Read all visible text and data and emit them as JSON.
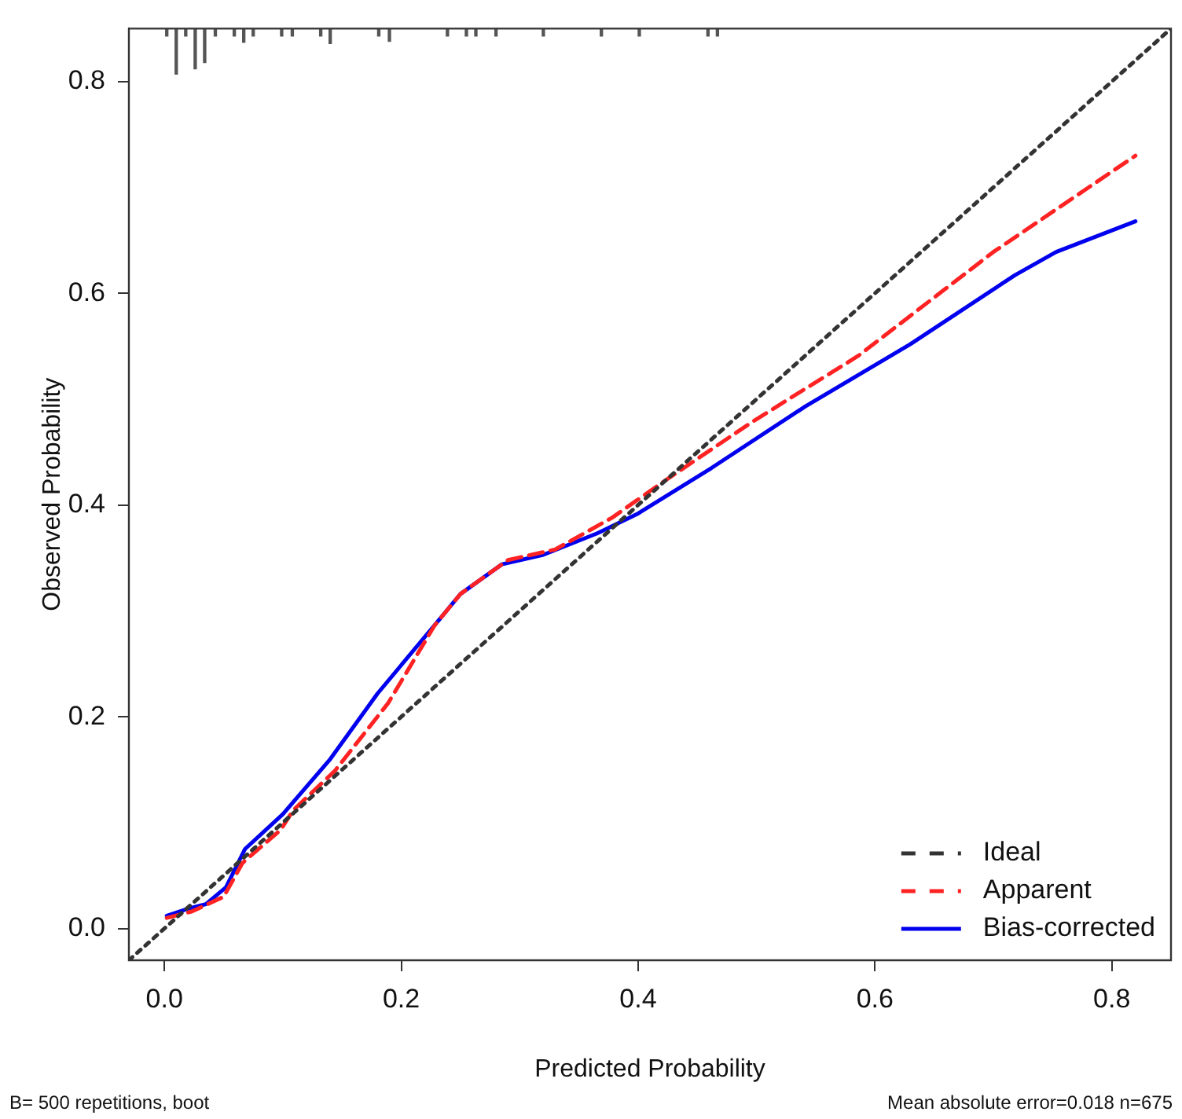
{
  "chart_data": {
    "type": "line",
    "xlabel": "Predicted Probability",
    "ylabel": "Observed Probability",
    "xlim": [
      -0.03,
      0.85
    ],
    "ylim": [
      -0.03,
      0.85
    ],
    "xticks": [
      {
        "value": 0,
        "label": "0.0"
      },
      {
        "value": 0.2,
        "label": "0.2"
      },
      {
        "value": 0.4,
        "label": "0.4"
      },
      {
        "value": 0.6,
        "label": "0.6"
      },
      {
        "value": 0.8,
        "label": "0.8"
      }
    ],
    "yticks": [
      {
        "value": 0,
        "label": "0.0"
      },
      {
        "value": 0.2,
        "label": "0.2"
      },
      {
        "value": 0.4,
        "label": "0.4"
      },
      {
        "value": 0.6,
        "label": "0.6"
      },
      {
        "value": 0.8,
        "label": "0.8"
      }
    ],
    "grid": false,
    "legend": "bottom right",
    "marker": "none",
    "annotations": [
      "B= 500 repetitions, boot",
      "Mean absolute error=0.018 n=675"
    ],
    "series": [
      {
        "type": "bar",
        "color": "#555555",
        "x": [
          0.002,
          0.01,
          0.018,
          0.026,
          0.034,
          0.043,
          0.059,
          0.067,
          0.075,
          0.099,
          0.108,
          0.132,
          0.14,
          0.181,
          0.19,
          0.239,
          0.255,
          0.263,
          0.28,
          0.32,
          0.369,
          0.401,
          0.459,
          0.467
        ],
        "base": [
          0.85,
          0.85,
          0.85,
          0.85,
          0.85,
          0.85,
          0.85,
          0.85,
          0.85,
          0.85,
          0.85,
          0.85,
          0.85,
          0.85,
          0.85,
          0.85,
          0.85,
          0.85,
          0.85,
          0.85,
          0.85,
          0.85,
          0.85,
          0.85
        ],
        "values": [
          -0.007,
          -0.043,
          -0.007,
          -0.038,
          -0.032,
          -0.007,
          -0.007,
          -0.013,
          -0.007,
          -0.007,
          -0.007,
          -0.007,
          -0.014,
          -0.007,
          -0.012,
          -0.007,
          -0.007,
          -0.007,
          -0.007,
          -0.007,
          -0.007,
          -0.007,
          -0.007,
          -0.007
        ]
      },
      {
        "name": "Ideal",
        "color": "#333333",
        "line_style": "dotted",
        "x": [
          -0.03,
          0.85
        ],
        "values": [
          -0.03,
          0.85
        ]
      },
      {
        "name": "Apparent",
        "color": "#ff2222",
        "line_style": "dashed",
        "x": [
          0.002,
          0.023,
          0.05,
          0.066,
          0.098,
          0.109,
          0.144,
          0.189,
          0.228,
          0.25,
          0.29,
          0.33,
          0.378,
          0.42,
          0.497,
          0.586,
          0.7,
          0.82
        ],
        "values": [
          0.01,
          0.016,
          0.03,
          0.062,
          0.093,
          0.112,
          0.149,
          0.213,
          0.286,
          0.316,
          0.348,
          0.358,
          0.388,
          0.421,
          0.479,
          0.541,
          0.639,
          0.73
        ]
      },
      {
        "name": "Bias-corrected",
        "color": "#0000ee",
        "line_style": "solid",
        "x": [
          0.002,
          0.021,
          0.035,
          0.052,
          0.068,
          0.1,
          0.14,
          0.18,
          0.233,
          0.25,
          0.285,
          0.32,
          0.365,
          0.4,
          0.462,
          0.541,
          0.63,
          0.718,
          0.753,
          0.82
        ],
        "values": [
          0.012,
          0.019,
          0.023,
          0.039,
          0.075,
          0.108,
          0.16,
          0.222,
          0.293,
          0.316,
          0.344,
          0.353,
          0.373,
          0.392,
          0.435,
          0.493,
          0.552,
          0.617,
          0.639,
          0.668
        ]
      }
    ]
  }
}
